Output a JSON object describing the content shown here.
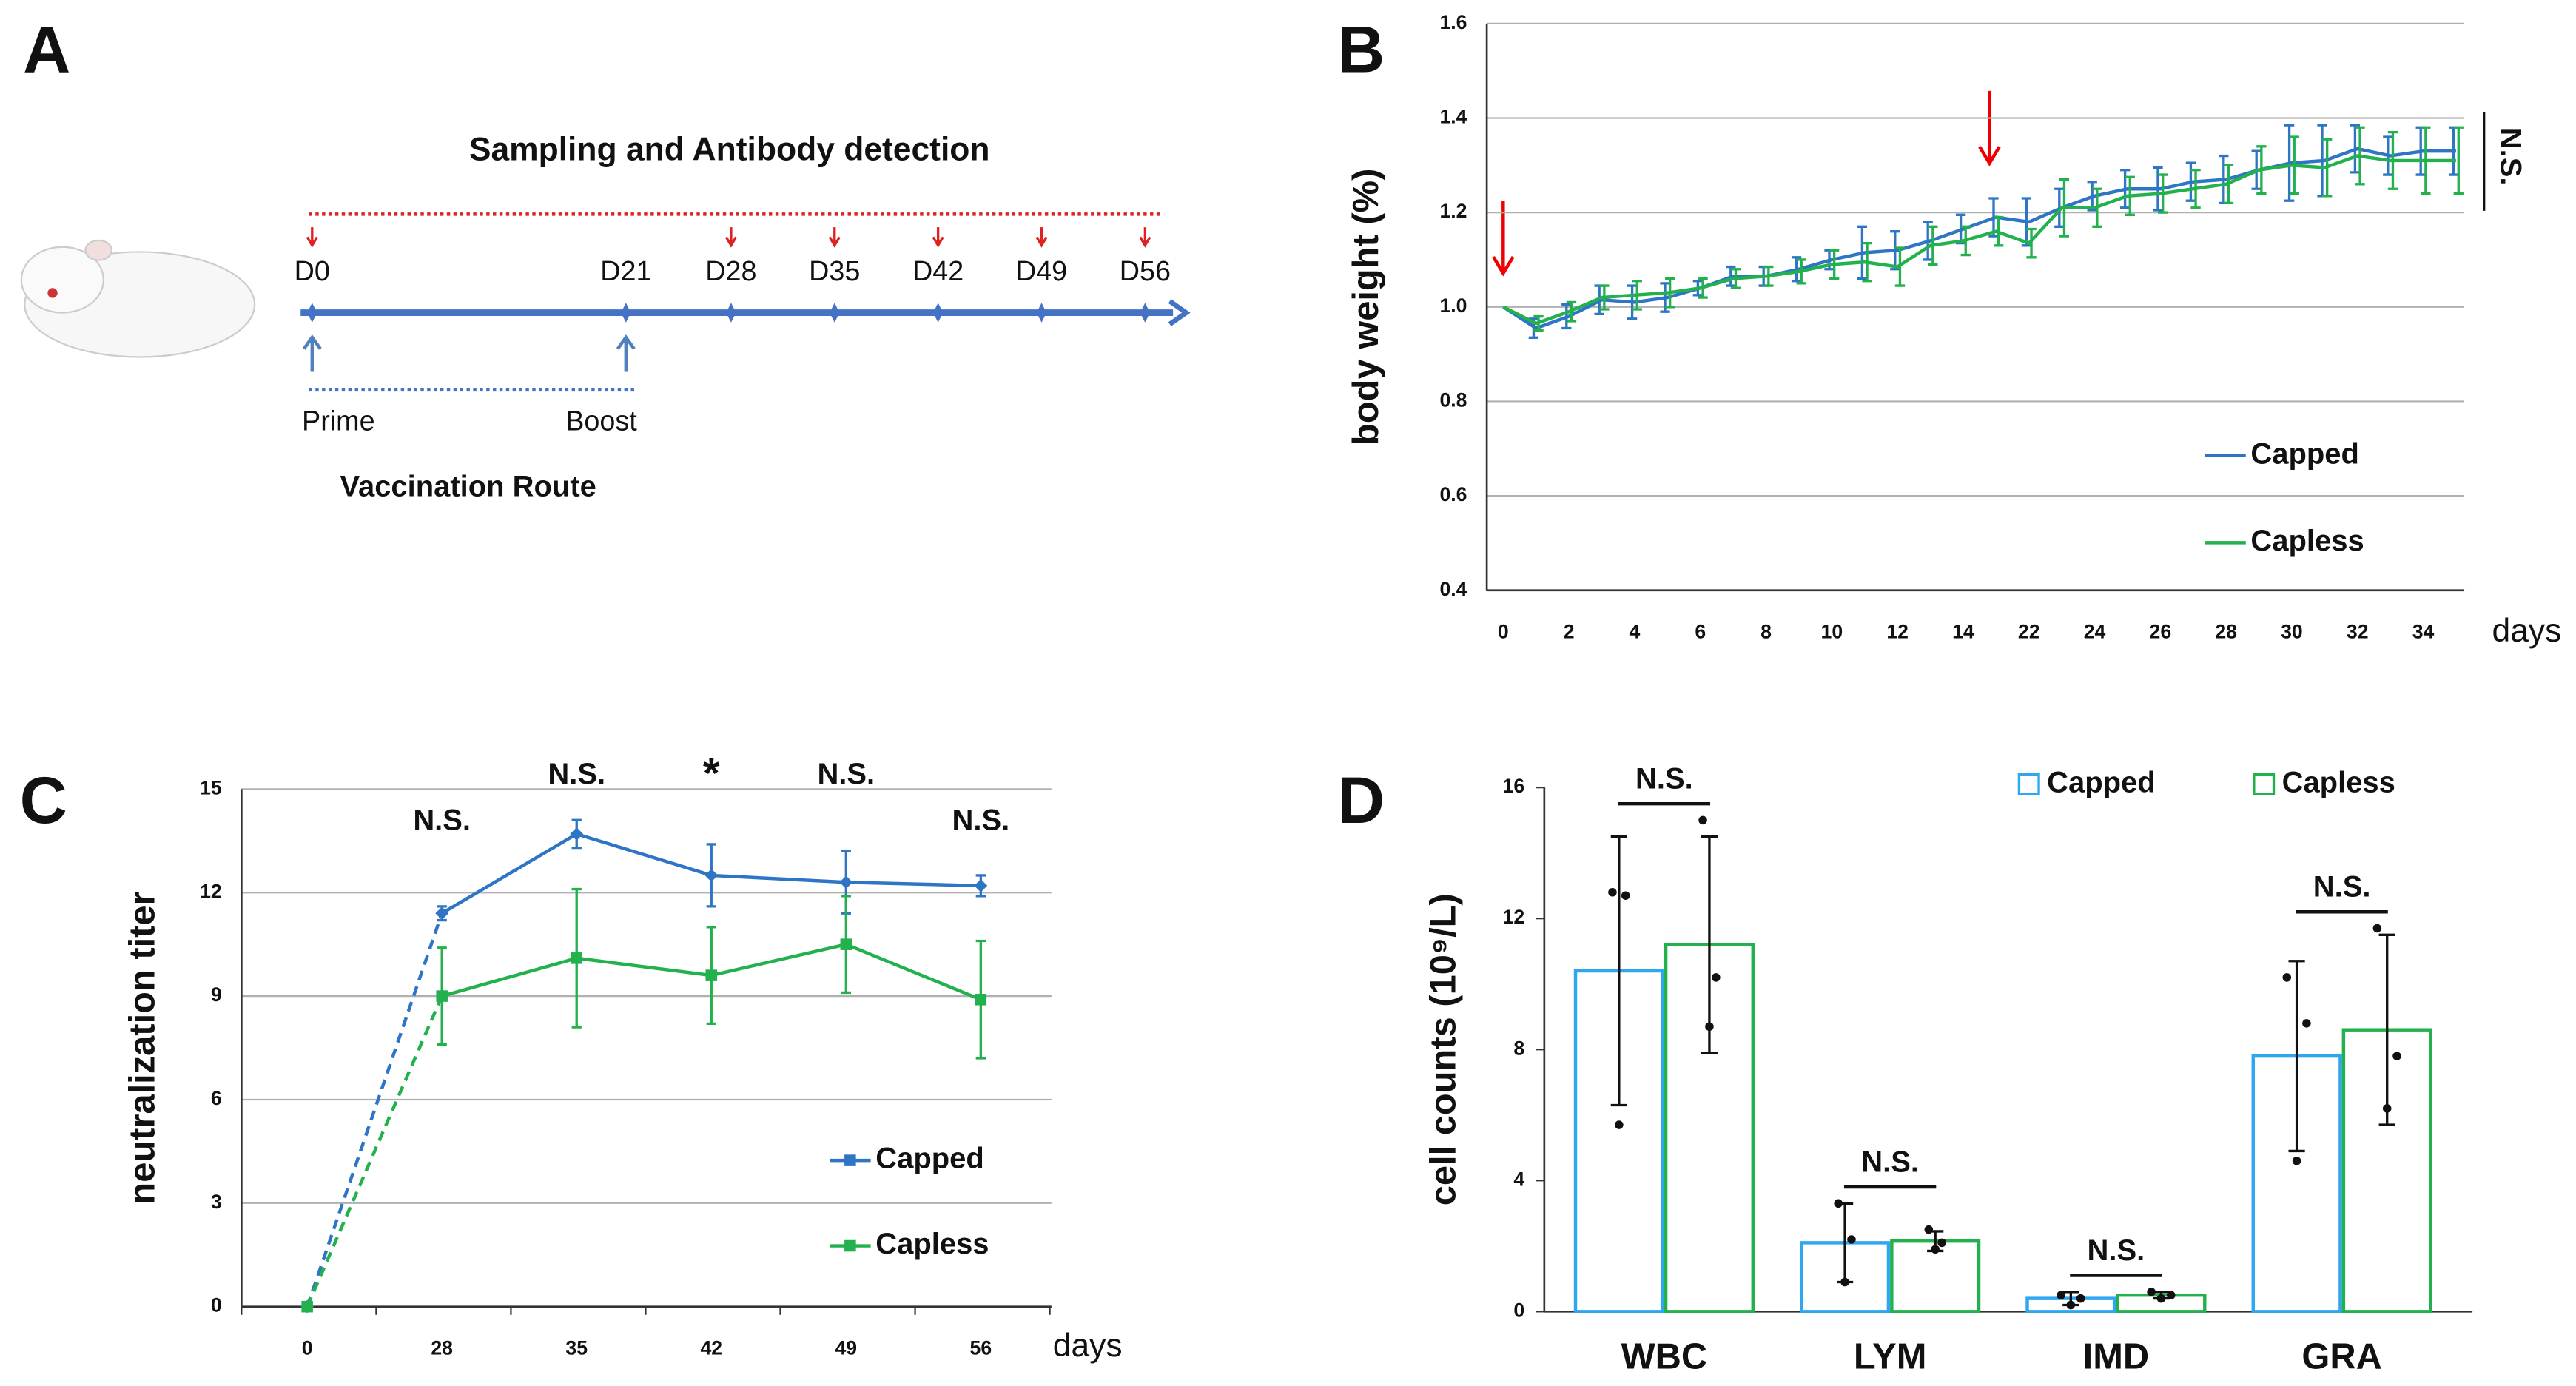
{
  "panel_a": {
    "label": "A",
    "title": "Sampling and Antibody detection",
    "days": [
      "D0",
      "D21",
      "D28",
      "D35",
      "D42",
      "D49",
      "D56"
    ],
    "prime": "Prime",
    "boost": "Boost",
    "route": "Vaccination Route"
  },
  "chart_data": [
    {
      "type": "line",
      "label": "B",
      "y_label": "body weight (%)",
      "x_label": "days",
      "annotation": "N.S.",
      "categories": [
        0,
        null,
        2,
        null,
        4,
        null,
        6,
        null,
        8,
        null,
        10,
        null,
        12,
        null,
        14,
        null,
        22,
        null,
        24,
        null,
        26,
        null,
        28,
        null,
        30,
        null,
        32,
        null,
        34,
        null
      ],
      "ylim": [
        0.4,
        1.6
      ],
      "yticks": [
        0.4,
        0.6,
        0.8,
        {
          "value": 1,
          "label": "1.0"
        },
        1.2,
        1.4,
        1.6
      ],
      "grid": true,
      "series": [
        {
          "name": "Capped",
          "color": "#2e75c6",
          "values": [
            1.0,
            0.955,
            0.98,
            1.015,
            1.01,
            1.02,
            1.04,
            1.065,
            1.065,
            1.08,
            1.1,
            1.115,
            1.12,
            1.14,
            1.165,
            1.19,
            1.18,
            1.21,
            1.235,
            1.25,
            1.25,
            1.265,
            1.27,
            1.29,
            1.305,
            1.31,
            1.335,
            1.32,
            1.33,
            1.33
          ],
          "errors": [
            0,
            0.02,
            0.025,
            0.03,
            0.035,
            0.03,
            0.015,
            0.02,
            0.02,
            0.025,
            0.02,
            0.055,
            0.04,
            0.04,
            0.03,
            0.04,
            0.05,
            0.04,
            0.03,
            0.04,
            0.045,
            0.04,
            0.05,
            0.04,
            0.08,
            0.075,
            0.05,
            0.04,
            0.05,
            0.05
          ]
        },
        {
          "name": "Capless",
          "color": "#22b14c",
          "values": [
            1.0,
            0.965,
            0.99,
            1.02,
            1.025,
            1.03,
            1.04,
            1.06,
            1.065,
            1.075,
            1.09,
            1.095,
            1.085,
            1.13,
            1.14,
            1.16,
            1.135,
            1.21,
            1.21,
            1.235,
            1.24,
            1.25,
            1.26,
            1.29,
            1.3,
            1.295,
            1.32,
            1.31,
            1.31,
            1.31
          ],
          "errors": [
            0,
            0.015,
            0.02,
            0.025,
            0.03,
            0.03,
            0.02,
            0.02,
            0.02,
            0.025,
            0.03,
            0.04,
            0.04,
            0.04,
            0.03,
            0.03,
            0.03,
            0.06,
            0.04,
            0.04,
            0.04,
            0.04,
            0.04,
            0.05,
            0.06,
            0.06,
            0.06,
            0.06,
            0.07,
            0.07
          ]
        }
      ]
    },
    {
      "type": "line",
      "label": "C",
      "y_label": "neutralization titer",
      "x_label": "days",
      "categories": [
        0,
        28,
        35,
        42,
        49,
        56
      ],
      "annotations": [
        null,
        "N.S.",
        "N.S.",
        "*",
        "N.S.",
        "N.S."
      ],
      "ylim": [
        0,
        15
      ],
      "yticks": [
        0,
        3,
        6,
        9,
        12,
        15
      ],
      "grid": true,
      "series": [
        {
          "name": "Capped",
          "color": "#2e75c6",
          "marker": "diamond",
          "values": [
            0,
            11.4,
            13.7,
            12.5,
            12.3,
            12.2
          ],
          "errors": [
            0,
            0.2,
            0.4,
            0.9,
            0.9,
            0.3
          ]
        },
        {
          "name": "Capless",
          "color": "#22b14c",
          "marker": "square",
          "values": [
            0,
            9.0,
            10.1,
            9.6,
            10.5,
            8.9
          ],
          "errors": [
            0,
            1.4,
            2.0,
            1.4,
            1.4,
            1.7
          ]
        }
      ]
    },
    {
      "type": "bar",
      "label": "D",
      "y_label": "cell counts (10⁹/L)",
      "categories": [
        "WBC",
        "LYM",
        "IMD",
        "GRA"
      ],
      "annotations": [
        "N.S.",
        "N.S.",
        "N.S.",
        "N.S."
      ],
      "ylim": [
        0,
        16
      ],
      "yticks": [
        0,
        4,
        8,
        12,
        16
      ],
      "series": [
        {
          "name": "Capped",
          "color": "#2ea6f0",
          "values": [
            10.4,
            2.1,
            0.4,
            7.8
          ],
          "errors": [
            4.1,
            1.2,
            0.2,
            2.9
          ],
          "points": [
            [
              12.8,
              12.7,
              5.7
            ],
            [
              3.3,
              2.2,
              0.9
            ],
            [
              0.5,
              0.4,
              0.2
            ],
            [
              10.2,
              8.8,
              4.6
            ]
          ]
        },
        {
          "name": "Capless",
          "color": "#22b14c",
          "values": [
            11.2,
            2.15,
            0.5,
            8.6
          ],
          "errors": [
            3.3,
            0.3,
            0.1,
            2.9
          ],
          "points": [
            [
              15.0,
              10.2,
              8.7
            ],
            [
              2.5,
              2.1,
              1.9
            ],
            [
              0.6,
              0.5,
              0.4
            ],
            [
              11.7,
              7.8,
              6.2
            ]
          ]
        }
      ]
    }
  ]
}
